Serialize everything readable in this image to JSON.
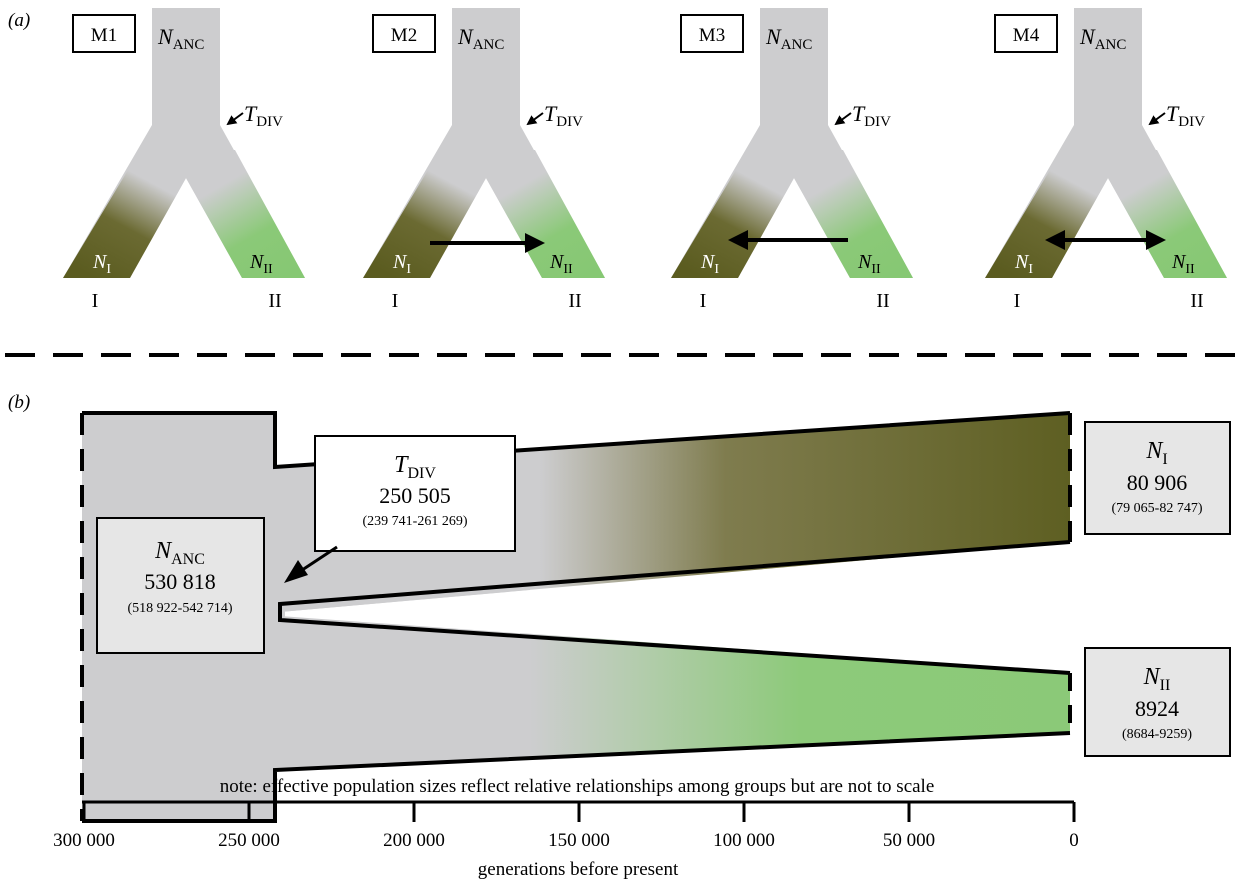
{
  "panel_a": {
    "label": "(a)",
    "models": [
      {
        "id": "M1",
        "migration": "none"
      },
      {
        "id": "M2",
        "migration": "I-to-II"
      },
      {
        "id": "M3",
        "migration": "II-to-I"
      },
      {
        "id": "M4",
        "migration": "bidirectional"
      }
    ],
    "n_anc": "N",
    "n_anc_sub": "ANC",
    "t_div": "T",
    "t_div_sub": "DIV",
    "n1": "N",
    "n1_sub": "I",
    "n2": "N",
    "n2_sub": "II",
    "pop1": "I",
    "pop2": "II"
  },
  "panel_b": {
    "label": "(b)",
    "t_div": {
      "symbol": "T",
      "sub": "DIV",
      "value": "250 505",
      "ci": "(239 741-261 269)"
    },
    "n_anc": {
      "symbol": "N",
      "sub": "ANC",
      "value": "530 818",
      "ci": "(518 922-542 714)"
    },
    "n_1": {
      "symbol": "N",
      "sub": "I",
      "value": "80 906",
      "ci": "(79 065-82 747)"
    },
    "n_2": {
      "symbol": "N",
      "sub": "II",
      "value": "8924",
      "ci": "(8684-9259)"
    },
    "note": "note: effective population sizes reflect relative relationships among groups but are not to scale",
    "axis": {
      "ticks": [
        "300 000",
        "250 000",
        "200 000",
        "150 000",
        "100 000",
        "50 000",
        "0"
      ],
      "label": "generations before present"
    }
  },
  "colors": {
    "ancestral": "#cdcdcf",
    "pop1": "#5e5f22",
    "pop2": "#8bc978"
  }
}
